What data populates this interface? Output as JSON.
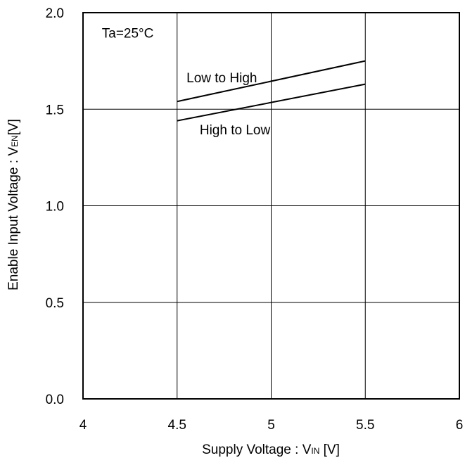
{
  "chart_data": {
    "type": "line",
    "xlabel": {
      "main": "Supply Voltage : V",
      "sub": "IN",
      "unit": " [V]"
    },
    "ylabel": {
      "main": "Enable Input Voltage : V",
      "sub": "EN",
      "unit": "[V]"
    },
    "xlim": [
      4,
      6
    ],
    "ylim": [
      0,
      2.0
    ],
    "x_ticks": [
      {
        "value": 4,
        "label": "4"
      },
      {
        "value": 4.5,
        "label": "4.5"
      },
      {
        "value": 5,
        "label": "5"
      },
      {
        "value": 5.5,
        "label": "5.5"
      },
      {
        "value": 6,
        "label": "6"
      }
    ],
    "y_ticks": [
      {
        "value": 0,
        "label": "0.0"
      },
      {
        "value": 0.5,
        "label": "0.5"
      },
      {
        "value": 1.0,
        "label": "1.0"
      },
      {
        "value": 1.5,
        "label": "1.5"
      },
      {
        "value": 2.0,
        "label": "2.0"
      }
    ],
    "grid": true,
    "series": [
      {
        "name": "Low to High",
        "x": [
          4.5,
          5.5
        ],
        "y": [
          1.54,
          1.75
        ]
      },
      {
        "name": "High to Low",
        "x": [
          4.5,
          5.5
        ],
        "y": [
          1.44,
          1.63
        ]
      }
    ],
    "annotations": [
      {
        "text": "Ta=25°C",
        "x": 4.1,
        "y": 1.87
      },
      {
        "text": "Low to High",
        "x": 4.55,
        "y": 1.64
      },
      {
        "text": "High to Low",
        "x": 4.62,
        "y": 1.37
      }
    ],
    "colors": {
      "line": "#000000",
      "grid": "#000000",
      "background": "#ffffff"
    }
  }
}
